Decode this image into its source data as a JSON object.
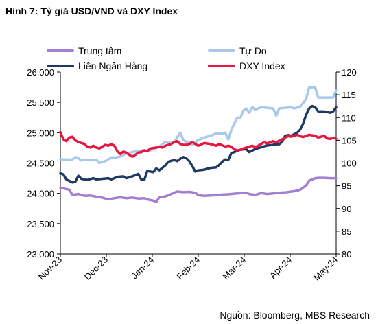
{
  "figure": {
    "title": "Hình 7: Tỷ giá USD/VND và DXY Index",
    "source": "Nguồn: Bloomberg, MBS Research"
  },
  "chart_data": {
    "type": "line",
    "x_ticks": [
      "Nov-23",
      "Dec-23",
      "Jan-24",
      "Feb-24",
      "Mar-24",
      "Apr-24",
      "May-24"
    ],
    "x_domain": [
      0,
      184
    ],
    "y_left": {
      "ylim": [
        23000,
        26000
      ],
      "ticks": [
        "23,000",
        "23,500",
        "24,000",
        "24,500",
        "25,000",
        "25,500",
        "26,000"
      ]
    },
    "y_right": {
      "ylim": [
        80,
        120
      ],
      "ticks": [
        "80",
        "85",
        "90",
        "95",
        "100",
        "105",
        "110",
        "115",
        "120"
      ]
    },
    "grid": false,
    "legend": "top",
    "series": [
      {
        "name": "Trung tâm",
        "axis": "left",
        "color": "#a37fd3",
        "points": [
          [
            0,
            24095
          ],
          [
            6,
            24060
          ],
          [
            8,
            23975
          ],
          [
            12,
            23990
          ],
          [
            16,
            23960
          ],
          [
            20,
            23965
          ],
          [
            24,
            23945
          ],
          [
            28,
            23930
          ],
          [
            32,
            23900
          ],
          [
            36,
            23920
          ],
          [
            40,
            23935
          ],
          [
            44,
            23920
          ],
          [
            48,
            23930
          ],
          [
            52,
            23915
          ],
          [
            56,
            23920
          ],
          [
            58,
            23900
          ],
          [
            62,
            23880
          ],
          [
            64,
            23860
          ],
          [
            66,
            23935
          ],
          [
            70,
            23950
          ],
          [
            74,
            23990
          ],
          [
            76,
            24010
          ],
          [
            78,
            24030
          ],
          [
            82,
            24020
          ],
          [
            86,
            24025
          ],
          [
            90,
            24010
          ],
          [
            92,
            23970
          ],
          [
            96,
            23960
          ],
          [
            100,
            23965
          ],
          [
            104,
            23970
          ],
          [
            108,
            23980
          ],
          [
            112,
            23985
          ],
          [
            116,
            23995
          ],
          [
            120,
            24005
          ],
          [
            124,
            24010
          ],
          [
            126,
            23990
          ],
          [
            130,
            23975
          ],
          [
            134,
            24005
          ],
          [
            138,
            23990
          ],
          [
            142,
            24000
          ],
          [
            146,
            24010
          ],
          [
            150,
            24015
          ],
          [
            154,
            24030
          ],
          [
            156,
            24035
          ],
          [
            160,
            24060
          ],
          [
            164,
            24130
          ],
          [
            166,
            24210
          ],
          [
            170,
            24250
          ],
          [
            172,
            24255
          ],
          [
            176,
            24255
          ],
          [
            180,
            24250
          ],
          [
            184,
            24250
          ]
        ]
      },
      {
        "name": "Tự Do",
        "axis": "left",
        "color": "#a9c8ec",
        "points": [
          [
            0,
            24560
          ],
          [
            8,
            24555
          ],
          [
            10,
            24600
          ],
          [
            12,
            24580
          ],
          [
            14,
            24540
          ],
          [
            16,
            24555
          ],
          [
            20,
            24545
          ],
          [
            24,
            24555
          ],
          [
            26,
            24500
          ],
          [
            30,
            24530
          ],
          [
            34,
            24590
          ],
          [
            38,
            24595
          ],
          [
            40,
            24610
          ],
          [
            44,
            24660
          ],
          [
            48,
            24680
          ],
          [
            52,
            24700
          ],
          [
            56,
            24710
          ],
          [
            58,
            24690
          ],
          [
            62,
            24730
          ],
          [
            66,
            24770
          ],
          [
            70,
            24850
          ],
          [
            72,
            24830
          ],
          [
            76,
            24840
          ],
          [
            78,
            24930
          ],
          [
            80,
            25000
          ],
          [
            82,
            24880
          ],
          [
            84,
            24850
          ],
          [
            86,
            24850
          ],
          [
            88,
            24800
          ],
          [
            92,
            24880
          ],
          [
            96,
            24920
          ],
          [
            100,
            24950
          ],
          [
            104,
            24990
          ],
          [
            108,
            24980
          ],
          [
            110,
            25000
          ],
          [
            112,
            24890
          ],
          [
            114,
            25040
          ],
          [
            116,
            25150
          ],
          [
            118,
            25250
          ],
          [
            120,
            25240
          ],
          [
            122,
            25360
          ],
          [
            124,
            25400
          ],
          [
            126,
            25330
          ],
          [
            128,
            25420
          ],
          [
            130,
            25380
          ],
          [
            132,
            25400
          ],
          [
            134,
            25420
          ],
          [
            138,
            25410
          ],
          [
            142,
            25400
          ],
          [
            144,
            25280
          ],
          [
            146,
            25400
          ],
          [
            150,
            25410
          ],
          [
            154,
            25420
          ],
          [
            156,
            25400
          ],
          [
            160,
            25430
          ],
          [
            162,
            25490
          ],
          [
            164,
            25560
          ],
          [
            166,
            25750
          ],
          [
            170,
            25750
          ],
          [
            172,
            25580
          ],
          [
            176,
            25580
          ],
          [
            180,
            25580
          ],
          [
            182,
            25580
          ],
          [
            184,
            25700
          ]
        ]
      },
      {
        "name": "Liên Ngân Hàng",
        "axis": "left",
        "color": "#1f3864",
        "points": [
          [
            0,
            24330
          ],
          [
            2,
            24310
          ],
          [
            4,
            24230
          ],
          [
            8,
            24180
          ],
          [
            10,
            24190
          ],
          [
            12,
            24290
          ],
          [
            14,
            24240
          ],
          [
            18,
            24220
          ],
          [
            22,
            24250
          ],
          [
            24,
            24230
          ],
          [
            28,
            24240
          ],
          [
            32,
            24250
          ],
          [
            34,
            24230
          ],
          [
            38,
            24270
          ],
          [
            42,
            24280
          ],
          [
            44,
            24250
          ],
          [
            48,
            24280
          ],
          [
            52,
            24320
          ],
          [
            54,
            24225
          ],
          [
            56,
            24220
          ],
          [
            58,
            24370
          ],
          [
            62,
            24350
          ],
          [
            64,
            24410
          ],
          [
            66,
            24380
          ],
          [
            70,
            24460
          ],
          [
            72,
            24520
          ],
          [
            76,
            24550
          ],
          [
            78,
            24530
          ],
          [
            80,
            24570
          ],
          [
            82,
            24600
          ],
          [
            84,
            24580
          ],
          [
            86,
            24530
          ],
          [
            88,
            24450
          ],
          [
            90,
            24360
          ],
          [
            92,
            24380
          ],
          [
            96,
            24390
          ],
          [
            100,
            24420
          ],
          [
            104,
            24430
          ],
          [
            106,
            24470
          ],
          [
            108,
            24520
          ],
          [
            110,
            24560
          ],
          [
            112,
            24550
          ],
          [
            114,
            24660
          ],
          [
            118,
            24700
          ],
          [
            120,
            24720
          ],
          [
            124,
            24730
          ],
          [
            126,
            24680
          ],
          [
            130,
            24730
          ],
          [
            134,
            24760
          ],
          [
            138,
            24790
          ],
          [
            142,
            24800
          ],
          [
            144,
            24810
          ],
          [
            146,
            24810
          ],
          [
            148,
            24850
          ],
          [
            150,
            24950
          ],
          [
            152,
            24960
          ],
          [
            154,
            24950
          ],
          [
            158,
            25000
          ],
          [
            160,
            25050
          ],
          [
            162,
            25150
          ],
          [
            164,
            25300
          ],
          [
            166,
            25400
          ],
          [
            168,
            25440
          ],
          [
            170,
            25420
          ],
          [
            172,
            25350
          ],
          [
            176,
            25350
          ],
          [
            180,
            25330
          ],
          [
            182,
            25350
          ],
          [
            184,
            25420
          ]
        ]
      },
      {
        "name": "DXY Index",
        "axis": "right",
        "color": "#e8173f",
        "points": [
          [
            0,
            106.8
          ],
          [
            2,
            105.2
          ],
          [
            4,
            104.8
          ],
          [
            6,
            105.6
          ],
          [
            8,
            105.8
          ],
          [
            10,
            105.0
          ],
          [
            12,
            104.6
          ],
          [
            14,
            104.4
          ],
          [
            16,
            104.2
          ],
          [
            18,
            103.6
          ],
          [
            20,
            103.4
          ],
          [
            22,
            103.8
          ],
          [
            24,
            103.4
          ],
          [
            26,
            103.2
          ],
          [
            28,
            103.6
          ],
          [
            30,
            104.0
          ],
          [
            32,
            103.8
          ],
          [
            34,
            104.2
          ],
          [
            36,
            103.8
          ],
          [
            38,
            102.6
          ],
          [
            40,
            102.0
          ],
          [
            42,
            102.5
          ],
          [
            44,
            102.3
          ],
          [
            46,
            101.8
          ],
          [
            48,
            101.4
          ],
          [
            50,
            101.8
          ],
          [
            52,
            102.3
          ],
          [
            54,
            102.4
          ],
          [
            56,
            102.8
          ],
          [
            58,
            102.6
          ],
          [
            60,
            103.2
          ],
          [
            62,
            103.3
          ],
          [
            64,
            103.4
          ],
          [
            66,
            103.6
          ],
          [
            68,
            103.4
          ],
          [
            70,
            103.8
          ],
          [
            72,
            104.0
          ],
          [
            74,
            104.2
          ],
          [
            76,
            104.6
          ],
          [
            78,
            104.8
          ],
          [
            80,
            104.2
          ],
          [
            82,
            104.0
          ],
          [
            84,
            104.0
          ],
          [
            86,
            104.2
          ],
          [
            88,
            104.6
          ],
          [
            90,
            104.2
          ],
          [
            92,
            103.8
          ],
          [
            94,
            104.1
          ],
          [
            96,
            104.4
          ],
          [
            98,
            104.3
          ],
          [
            100,
            104.2
          ],
          [
            102,
            104.0
          ],
          [
            104,
            103.8
          ],
          [
            106,
            104.2
          ],
          [
            108,
            103.9
          ],
          [
            110,
            103.6
          ],
          [
            112,
            103.8
          ],
          [
            114,
            103.6
          ],
          [
            116,
            103.0
          ],
          [
            118,
            102.8
          ],
          [
            120,
            102.9
          ],
          [
            122,
            103.2
          ],
          [
            124,
            103.4
          ],
          [
            126,
            103.6
          ],
          [
            128,
            103.8
          ],
          [
            130,
            103.5
          ],
          [
            132,
            103.8
          ],
          [
            134,
            104.2
          ],
          [
            136,
            104.6
          ],
          [
            138,
            104.3
          ],
          [
            140,
            104.6
          ],
          [
            142,
            104.8
          ],
          [
            144,
            104.5
          ],
          [
            146,
            104.9
          ],
          [
            148,
            105.2
          ],
          [
            150,
            105.6
          ],
          [
            152,
            105.9
          ],
          [
            154,
            105.8
          ],
          [
            156,
            106.0
          ],
          [
            158,
            106.2
          ],
          [
            160,
            105.9
          ],
          [
            162,
            105.7
          ],
          [
            164,
            106.0
          ],
          [
            166,
            106.2
          ],
          [
            168,
            106.1
          ],
          [
            170,
            106.0
          ],
          [
            172,
            105.6
          ],
          [
            174,
            105.8
          ],
          [
            176,
            106.0
          ],
          [
            178,
            105.4
          ],
          [
            180,
            105.3
          ],
          [
            182,
            105.6
          ],
          [
            184,
            105.3
          ]
        ]
      }
    ]
  }
}
